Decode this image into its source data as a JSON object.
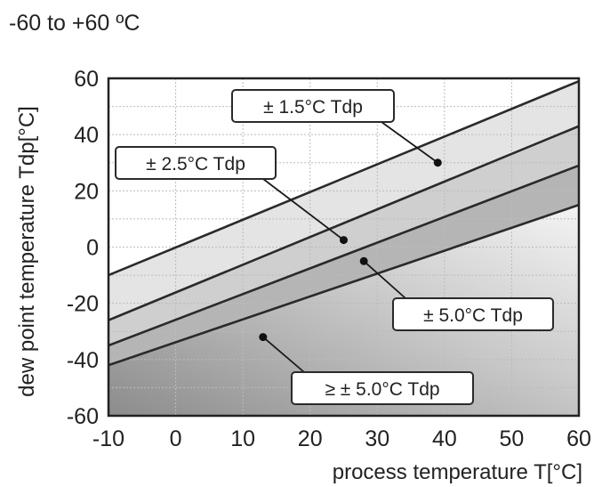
{
  "page": {
    "range_title": "-60 to +60 ºC"
  },
  "chart_data": {
    "type": "area",
    "title": "-60 to +60 ºC",
    "xlabel": "process temperature  T[°C]",
    "ylabel": "dew point temperature  Tdp[°C]",
    "xlim": [
      -10,
      60
    ],
    "ylim": [
      -60,
      60
    ],
    "xticks": [
      "-10",
      "0",
      "10",
      "20",
      "30",
      "40",
      "50",
      "60"
    ],
    "yticks": [
      "60",
      "40",
      "20",
      "0",
      "-20",
      "-40",
      "-60"
    ],
    "grid": true,
    "boundaries": [
      {
        "x": [
          -10,
          60
        ],
        "y": [
          -10,
          59
        ]
      },
      {
        "x": [
          -10,
          60
        ],
        "y": [
          -26,
          43
        ]
      },
      {
        "x": [
          -10,
          60
        ],
        "y": [
          -35,
          29
        ]
      },
      {
        "x": [
          -10,
          60
        ],
        "y": [
          -42,
          15
        ]
      }
    ],
    "regions": [
      {
        "label": "± 1.5°C Tdp",
        "fill": "#e4e4e4",
        "marker": {
          "x": 39,
          "y": 30
        }
      },
      {
        "label": "± 2.5°C Tdp",
        "fill": "#cfcfcf",
        "marker": {
          "x": 25,
          "y": 2.5
        }
      },
      {
        "label": "± 5.0°C Tdp",
        "fill": "#b5b5b5",
        "marker": {
          "x": 28,
          "y": -5
        }
      },
      {
        "label": "≥ ± 5.0°C Tdp",
        "fill": "#9a9a9a",
        "marker": {
          "x": 13,
          "y": -32
        }
      }
    ],
    "colors": {
      "line": "#2a2a2a",
      "grid": "#bcbcbc",
      "frame": "#222222"
    }
  }
}
